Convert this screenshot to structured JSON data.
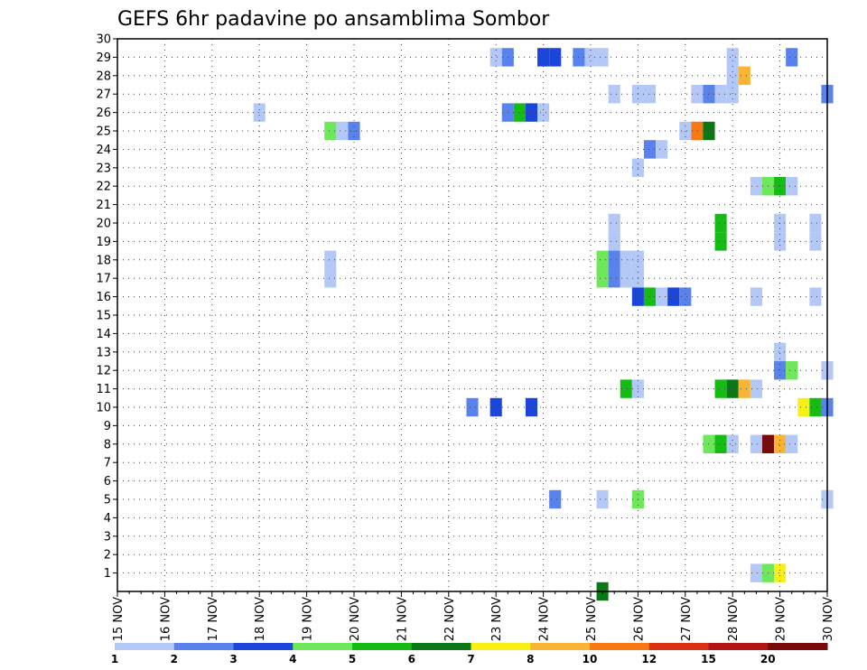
{
  "chart_data": {
    "type": "heatmap",
    "title": "GEFS 6hr padavine po ansamblima Sombor",
    "xlabel": "",
    "ylabel": "",
    "x_tick_labels": [
      "15 NOV",
      "16 NOV",
      "17 NOV",
      "18 NOV",
      "19 NOV",
      "20 NOV",
      "21 NOV",
      "22 NOV",
      "23 NOV",
      "24 NOV",
      "25 NOV",
      "26 NOV",
      "27 NOV",
      "28 NOV",
      "29 NOV",
      "30 NOV"
    ],
    "xlim_days": [
      15,
      30
    ],
    "x_step_hours": 6,
    "y_tick_labels": [
      "1",
      "2",
      "3",
      "4",
      "5",
      "6",
      "7",
      "8",
      "9",
      "10",
      "11",
      "12",
      "13",
      "14",
      "15",
      "16",
      "17",
      "18",
      "19",
      "20",
      "21",
      "22",
      "23",
      "24",
      "25",
      "26",
      "27",
      "28",
      "29",
      "30"
    ],
    "ylim": [
      0,
      30
    ],
    "grid": true,
    "colorbar": {
      "labels": [
        "1",
        "2",
        "3",
        "4",
        "5",
        "6",
        "7",
        "8",
        "10",
        "12",
        "15",
        "20"
      ],
      "colors": [
        "#b4c8f8",
        "#5a82ec",
        "#1a46dc",
        "#6ee85a",
        "#14bc14",
        "#0a7814",
        "#f8f014",
        "#f8b432",
        "#f87814",
        "#dc3214",
        "#b41414",
        "#780a0a"
      ]
    },
    "cells": [
      {
        "member": 29,
        "day": 23.0,
        "v": 1
      },
      {
        "member": 29,
        "day": 23.25,
        "v": 2
      },
      {
        "member": 29,
        "day": 24.0,
        "v": 3
      },
      {
        "member": 29,
        "day": 24.25,
        "v": 3
      },
      {
        "member": 29,
        "day": 24.75,
        "v": 2
      },
      {
        "member": 29,
        "day": 25.0,
        "v": 1
      },
      {
        "member": 29,
        "day": 25.25,
        "v": 1
      },
      {
        "member": 29,
        "day": 28.0,
        "v": 1
      },
      {
        "member": 29,
        "day": 29.25,
        "v": 2
      },
      {
        "member": 28,
        "day": 28.0,
        "v": 1
      },
      {
        "member": 28,
        "day": 28.25,
        "v": 8
      },
      {
        "member": 27,
        "day": 25.5,
        "v": 1
      },
      {
        "member": 27,
        "day": 26.0,
        "v": 1
      },
      {
        "member": 27,
        "day": 26.25,
        "v": 1
      },
      {
        "member": 27,
        "day": 27.25,
        "v": 1
      },
      {
        "member": 27,
        "day": 27.5,
        "v": 2
      },
      {
        "member": 27,
        "day": 27.75,
        "v": 1
      },
      {
        "member": 27,
        "day": 28.0,
        "v": 1
      },
      {
        "member": 27,
        "day": 30.0,
        "v": 2
      },
      {
        "member": 26,
        "day": 18.0,
        "v": 1
      },
      {
        "member": 26,
        "day": 23.25,
        "v": 2
      },
      {
        "member": 26,
        "day": 23.5,
        "v": 5
      },
      {
        "member": 26,
        "day": 23.75,
        "v": 3
      },
      {
        "member": 26,
        "day": 24.0,
        "v": 1
      },
      {
        "member": 25,
        "day": 19.5,
        "v": 4
      },
      {
        "member": 25,
        "day": 19.75,
        "v": 1
      },
      {
        "member": 25,
        "day": 20.0,
        "v": 2
      },
      {
        "member": 25,
        "day": 27.0,
        "v": 1
      },
      {
        "member": 25,
        "day": 27.25,
        "v": 10
      },
      {
        "member": 25,
        "day": 27.5,
        "v": 6
      },
      {
        "member": 24,
        "day": 26.25,
        "v": 2
      },
      {
        "member": 24,
        "day": 26.5,
        "v": 1
      },
      {
        "member": 23,
        "day": 26.0,
        "v": 1
      },
      {
        "member": 22,
        "day": 28.5,
        "v": 1
      },
      {
        "member": 22,
        "day": 28.75,
        "v": 4
      },
      {
        "member": 22,
        "day": 29.0,
        "v": 5
      },
      {
        "member": 22,
        "day": 29.25,
        "v": 1
      },
      {
        "member": 20,
        "day": 25.5,
        "v": 1
      },
      {
        "member": 20,
        "day": 27.75,
        "v": 5
      },
      {
        "member": 20,
        "day": 29.0,
        "v": 1
      },
      {
        "member": 20,
        "day": 29.75,
        "v": 1
      },
      {
        "member": 19,
        "day": 25.5,
        "v": 1
      },
      {
        "member": 19,
        "day": 27.75,
        "v": 5
      },
      {
        "member": 19,
        "day": 29.0,
        "v": 1
      },
      {
        "member": 19,
        "day": 29.75,
        "v": 1
      },
      {
        "member": 18,
        "day": 19.5,
        "v": 1
      },
      {
        "member": 18,
        "day": 25.25,
        "v": 4
      },
      {
        "member": 18,
        "day": 25.5,
        "v": 2
      },
      {
        "member": 18,
        "day": 25.75,
        "v": 1
      },
      {
        "member": 18,
        "day": 26.0,
        "v": 1
      },
      {
        "member": 17,
        "day": 19.5,
        "v": 1
      },
      {
        "member": 17,
        "day": 25.25,
        "v": 4
      },
      {
        "member": 17,
        "day": 25.5,
        "v": 2
      },
      {
        "member": 17,
        "day": 25.75,
        "v": 1
      },
      {
        "member": 17,
        "day": 26.0,
        "v": 1
      },
      {
        "member": 16,
        "day": 26.0,
        "v": 3
      },
      {
        "member": 16,
        "day": 26.25,
        "v": 5
      },
      {
        "member": 16,
        "day": 26.5,
        "v": 1
      },
      {
        "member": 16,
        "day": 26.75,
        "v": 3
      },
      {
        "member": 16,
        "day": 27.0,
        "v": 2
      },
      {
        "member": 16,
        "day": 28.5,
        "v": 1
      },
      {
        "member": 16,
        "day": 29.75,
        "v": 1
      },
      {
        "member": 13,
        "day": 29.0,
        "v": 1
      },
      {
        "member": 12,
        "day": 29.0,
        "v": 2
      },
      {
        "member": 12,
        "day": 29.25,
        "v": 4
      },
      {
        "member": 12,
        "day": 30.0,
        "v": 1
      },
      {
        "member": 11,
        "day": 25.75,
        "v": 5
      },
      {
        "member": 11,
        "day": 26.0,
        "v": 1
      },
      {
        "member": 11,
        "day": 27.75,
        "v": 5
      },
      {
        "member": 11,
        "day": 28.0,
        "v": 6
      },
      {
        "member": 11,
        "day": 28.25,
        "v": 8
      },
      {
        "member": 11,
        "day": 28.5,
        "v": 1
      },
      {
        "member": 10,
        "day": 22.5,
        "v": 2
      },
      {
        "member": 10,
        "day": 23.0,
        "v": 3
      },
      {
        "member": 10,
        "day": 23.75,
        "v": 3
      },
      {
        "member": 10,
        "day": 29.5,
        "v": 7
      },
      {
        "member": 10,
        "day": 29.75,
        "v": 5
      },
      {
        "member": 10,
        "day": 30.0,
        "v": 2
      },
      {
        "member": 8,
        "day": 27.5,
        "v": 4
      },
      {
        "member": 8,
        "day": 27.75,
        "v": 5
      },
      {
        "member": 8,
        "day": 28.0,
        "v": 1
      },
      {
        "member": 8,
        "day": 28.5,
        "v": 1
      },
      {
        "member": 8,
        "day": 28.75,
        "v": 20
      },
      {
        "member": 8,
        "day": 29.0,
        "v": 8
      },
      {
        "member": 8,
        "day": 29.25,
        "v": 1
      },
      {
        "member": 5,
        "day": 24.25,
        "v": 2
      },
      {
        "member": 5,
        "day": 25.25,
        "v": 1
      },
      {
        "member": 5,
        "day": 26.0,
        "v": 4
      },
      {
        "member": 5,
        "day": 30.0,
        "v": 1
      },
      {
        "member": 1,
        "day": 28.5,
        "v": 1
      },
      {
        "member": 1,
        "day": 28.75,
        "v": 4
      },
      {
        "member": 1,
        "day": 29.0,
        "v": 7
      },
      {
        "member": 0,
        "day": 25.25,
        "v": 6
      }
    ]
  }
}
